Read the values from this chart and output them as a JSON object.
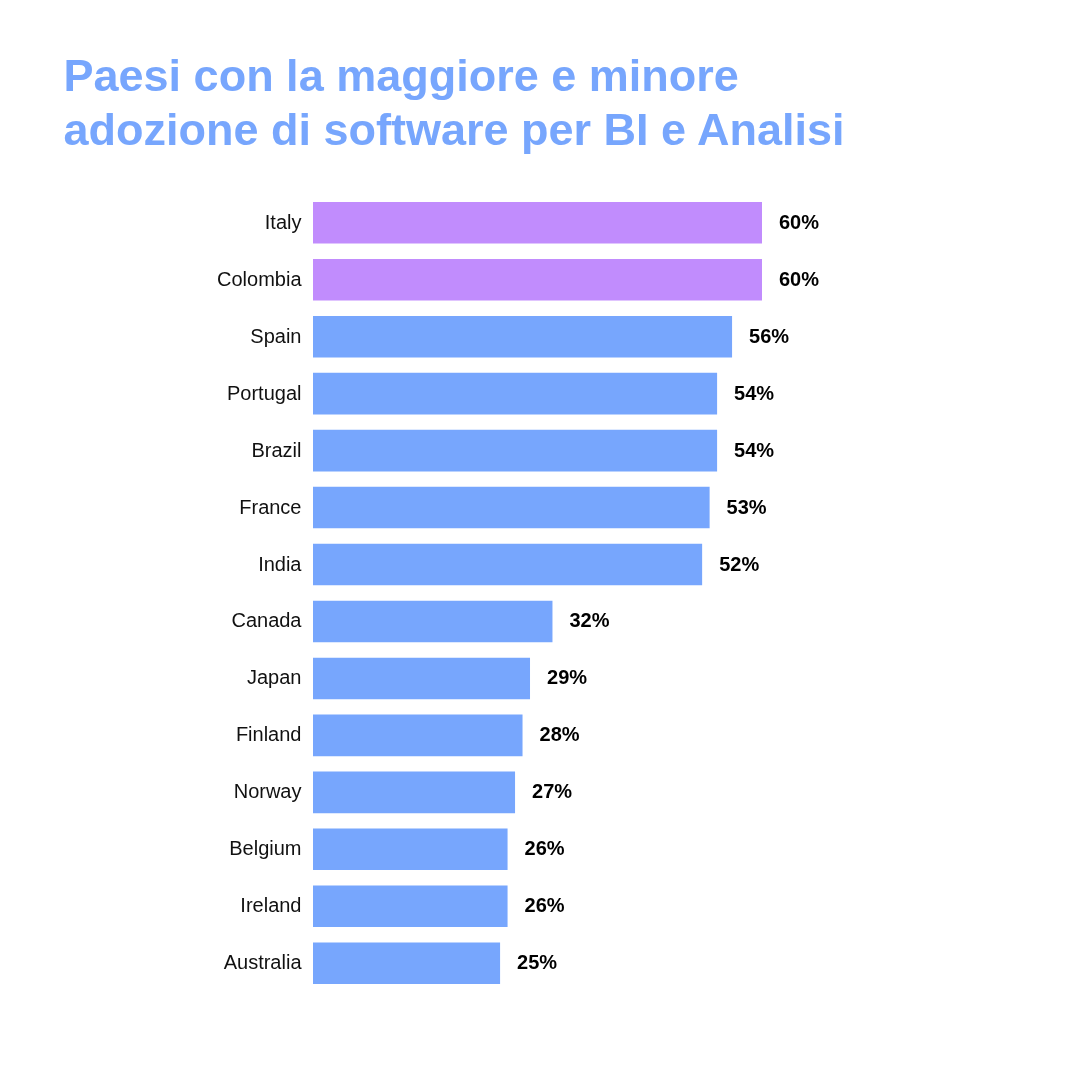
{
  "chart_data": {
    "type": "bar",
    "orientation": "horizontal",
    "title": [
      "Paesi con la maggiore e minore",
      "adozione di software per BI e Analisi"
    ],
    "categories": [
      "Italy",
      "Colombia",
      "Spain",
      "Portugal",
      "Brazil",
      "France",
      "India",
      "Canada",
      "Japan",
      "Finland",
      "Norway",
      "Belgium",
      "Ireland",
      "Australia"
    ],
    "values": [
      60,
      60,
      56,
      54,
      54,
      53,
      52,
      32,
      29,
      28,
      27,
      26,
      26,
      25
    ],
    "colors": [
      "#c18cfd",
      "#c18cfd",
      "#77a6fd",
      "#77a6fd",
      "#77a6fd",
      "#77a6fd",
      "#77a6fd",
      "#77a6fd",
      "#77a6fd",
      "#77a6fd",
      "#77a6fd",
      "#77a6fd",
      "#77a6fd",
      "#77a6fd"
    ],
    "value_labels": [
      "60%",
      "60%",
      "56%",
      "54%",
      "54%",
      "53%",
      "52%",
      "32%",
      "29%",
      "28%",
      "27%",
      "26%",
      "26%",
      "25%"
    ],
    "grid": false
  }
}
